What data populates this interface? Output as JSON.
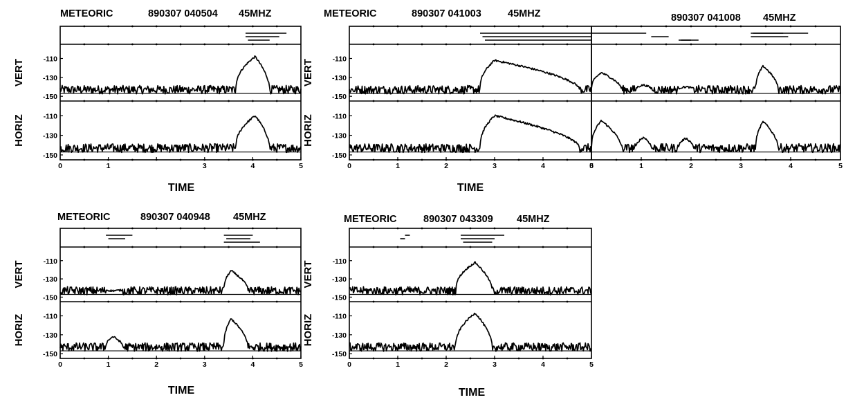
{
  "chart_data": [
    {
      "type": "line",
      "title_prefix": "METEORIC",
      "title_time": "890307 040504",
      "title_freq": "45MHZ",
      "xlabel": "TIME",
      "x_ticks": [
        "0",
        "1",
        "",
        "3",
        "4",
        "5"
      ],
      "xlim": [
        0,
        5
      ],
      "channels": [
        "VERT",
        "HORIZ"
      ],
      "y_ticks": [
        "-110",
        "-130",
        "-150"
      ],
      "ylim": [
        -155,
        -95
      ],
      "echoes": [
        {
          "start": 3.65,
          "end": 4.35,
          "peak_time": 4.05,
          "vert_peak": -108,
          "horiz_peak": -110
        }
      ],
      "series": [
        {
          "name": "VERT",
          "noise_floor": -143
        },
        {
          "name": "HORIZ",
          "noise_floor": -143
        }
      ],
      "indicator_segments": [
        [
          3.85,
          4.7
        ],
        [
          3.85,
          4.55
        ],
        [
          3.9,
          4.35
        ]
      ]
    },
    {
      "type": "line",
      "title_prefix": "METEORIC",
      "title_time": "890307 041003",
      "title_freq": "45MHZ",
      "xlabel": "TIME",
      "x_ticks": [
        "0",
        "1",
        "2",
        "3",
        "4",
        "5"
      ],
      "xlim": [
        0,
        5
      ],
      "channels": [
        "VERT",
        "HORIZ"
      ],
      "y_ticks": [
        "-110",
        "-130",
        "-150"
      ],
      "ylim": [
        -155,
        -95
      ],
      "echoes": [
        {
          "start": 2.7,
          "end": 4.75,
          "peak_time": 3.0,
          "vert_peak": -112,
          "horiz_peak": -110
        }
      ],
      "series": [
        {
          "name": "VERT",
          "noise_floor": -143
        },
        {
          "name": "HORIZ",
          "noise_floor": -143
        }
      ],
      "indicator_segments": [
        [
          2.7,
          5.0
        ],
        [
          2.75,
          5.0
        ],
        [
          2.8,
          5.0
        ]
      ]
    },
    {
      "type": "line",
      "title_prefix": "",
      "title_time": "890307 041008",
      "title_freq": "45MHZ",
      "xlabel": "",
      "x_ticks": [
        "0",
        "1",
        "2",
        "3",
        "4",
        "5"
      ],
      "xlim": [
        0,
        5
      ],
      "channels": [
        "VERT",
        "HORIZ"
      ],
      "y_ticks": [],
      "ylim": [
        -155,
        -95
      ],
      "echoes": [
        {
          "start": 0.0,
          "end": 0.6,
          "peak_time": 0.2,
          "vert_peak": -125,
          "horiz_peak": -115
        },
        {
          "start": 0.9,
          "end": 1.2,
          "peak_time": 1.05,
          "vert_peak": -138,
          "horiz_peak": -132
        },
        {
          "start": 1.75,
          "end": 2.05,
          "peak_time": 1.9,
          "vert_peak": -140,
          "horiz_peak": -133
        },
        {
          "start": 3.3,
          "end": 3.75,
          "peak_time": 3.45,
          "vert_peak": -118,
          "horiz_peak": -116
        }
      ],
      "series": [
        {
          "name": "VERT",
          "noise_floor": -143
        },
        {
          "name": "HORIZ",
          "noise_floor": -143
        }
      ],
      "indicator_segments": [
        [
          0.0,
          1.1
        ],
        [
          1.2,
          1.55
        ],
        [
          1.75,
          2.15
        ],
        [
          3.2,
          4.35
        ],
        [
          3.2,
          3.95
        ],
        [
          1.8,
          2.0
        ],
        [
          3.25,
          3.85
        ]
      ]
    },
    {
      "type": "line",
      "title_prefix": "METEORIC",
      "title_time": "890307 040948",
      "title_freq": "45MHZ",
      "xlabel": "TIME",
      "x_ticks": [
        "0",
        "1",
        "2",
        "3",
        "4",
        "5"
      ],
      "xlim": [
        0,
        5
      ],
      "channels": [
        "VERT",
        "HORIZ"
      ],
      "y_ticks": [
        "-110",
        "-130",
        "-150"
      ],
      "ylim": [
        -155,
        -95
      ],
      "echoes": [
        {
          "start": 0.95,
          "end": 1.3,
          "peak_time": 1.1,
          "vert_peak": -143,
          "horiz_peak": -132
        },
        {
          "start": 3.4,
          "end": 3.9,
          "peak_time": 3.55,
          "vert_peak": -121,
          "horiz_peak": -113
        }
      ],
      "series": [
        {
          "name": "VERT",
          "noise_floor": -143
        },
        {
          "name": "HORIZ",
          "noise_floor": -143
        }
      ],
      "indicator_segments": [
        [
          0.95,
          1.5
        ],
        [
          1.0,
          1.35
        ],
        [
          3.4,
          4.15
        ],
        [
          3.4,
          4.0
        ],
        [
          3.45,
          3.95
        ]
      ]
    },
    {
      "type": "line",
      "title_prefix": "METEORIC",
      "title_time": "890307 043309",
      "title_freq": "45MHZ",
      "xlabel": "TIME",
      "x_ticks": [
        "0",
        "1",
        "2",
        "3",
        "4",
        "5"
      ],
      "xlim": [
        0,
        5
      ],
      "channels": [
        "VERT",
        "HORIZ"
      ],
      "y_ticks": [
        "-110",
        "-130",
        "-150"
      ],
      "ylim": [
        -155,
        -95
      ],
      "echoes": [
        {
          "start": 2.2,
          "end": 2.95,
          "peak_time": 2.6,
          "vert_peak": -112,
          "horiz_peak": -107
        }
      ],
      "series": [
        {
          "name": "VERT",
          "noise_floor": -143
        },
        {
          "name": "HORIZ",
          "noise_floor": -143
        }
      ],
      "indicator_segments": [
        [
          2.3,
          3.2
        ],
        [
          2.3,
          3.0
        ],
        [
          2.35,
          2.95
        ],
        [
          1.15,
          1.25
        ],
        [
          1.05,
          1.15
        ]
      ]
    }
  ]
}
